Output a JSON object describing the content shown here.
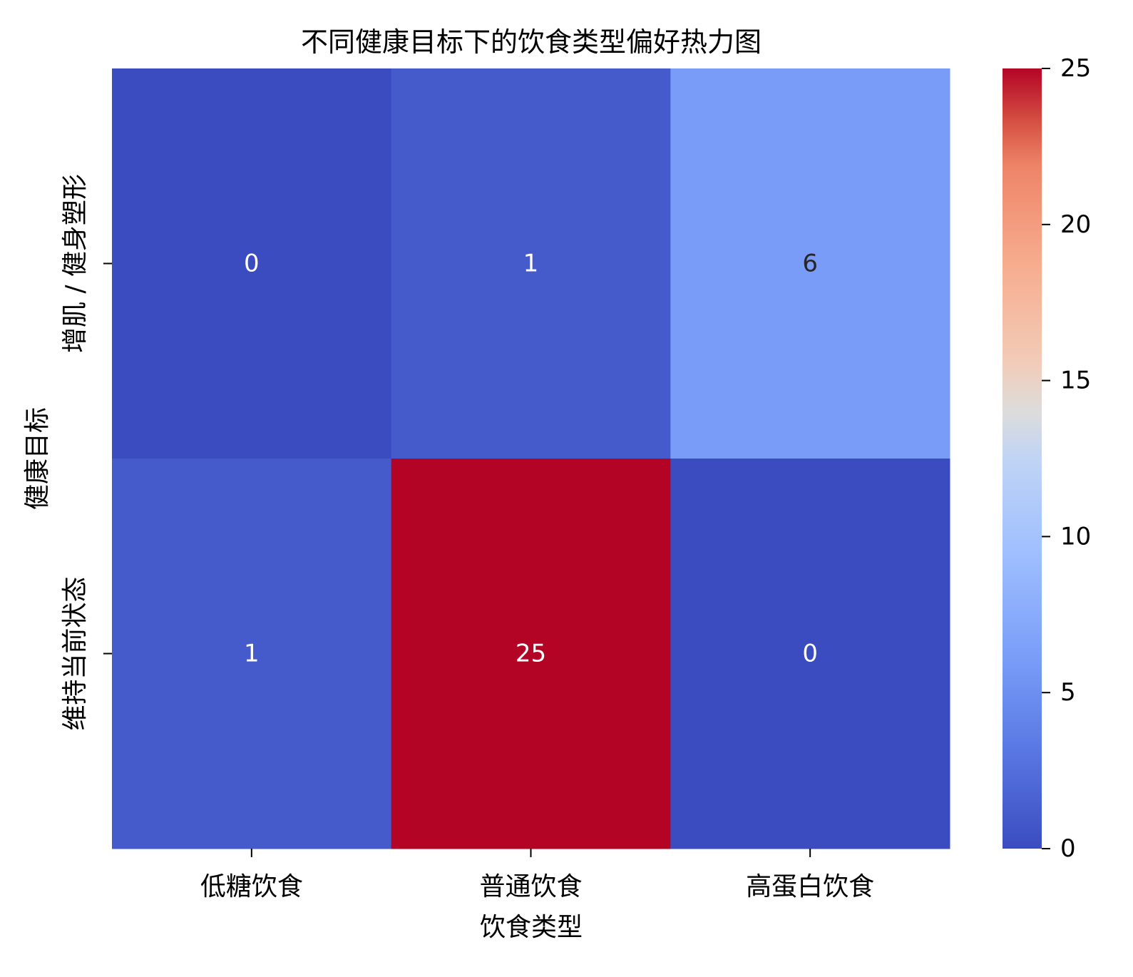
{
  "chart_data": {
    "type": "heatmap",
    "title": "不同健康目标下的饮食类型偏好热力图",
    "xlabel": "饮食类型",
    "ylabel": "健康目标",
    "x_categories": [
      "低糖饮食",
      "普通饮食",
      "高蛋白饮食"
    ],
    "y_categories": [
      "增肌 / 健身塑形",
      "维持当前状态"
    ],
    "values": [
      [
        0,
        1,
        6
      ],
      [
        1,
        25,
        0
      ]
    ],
    "annotations": true,
    "colormap": "coolwarm",
    "colorbar": {
      "vmin": 0,
      "vmax": 25,
      "ticks": [
        0,
        5,
        10,
        15,
        20,
        25
      ]
    },
    "text_colors": {
      "light": "#ffffff",
      "dark": "#262626"
    }
  }
}
